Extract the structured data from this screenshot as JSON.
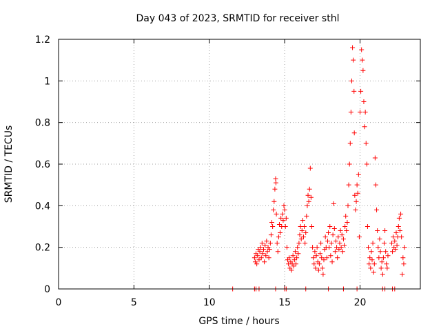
{
  "chart_data": {
    "type": "scatter",
    "title": "Day 043 of 2023, SRMTID for receiver sthl",
    "xlabel": "GPS time / hours",
    "ylabel": "SRMTID / TECUs",
    "xlim": [
      0,
      24
    ],
    "ylim": [
      0,
      1.2
    ],
    "xticks": [
      0,
      5,
      10,
      15,
      20
    ],
    "xtick_labels": [
      "0",
      "5",
      "10",
      "15",
      "20"
    ],
    "yticks": [
      0,
      0.2,
      0.4,
      0.6,
      0.8,
      1.0,
      1.2
    ],
    "ytick_labels": [
      "0",
      "0.2",
      "0.4",
      "0.6",
      "0.8",
      "1",
      "1.2"
    ],
    "grid": true,
    "marker": "+",
    "color": "#ff0000",
    "series": [
      {
        "name": "SRMTID",
        "points": [
          [
            11.55,
            0
          ],
          [
            13.0,
            0
          ],
          [
            13.1,
            0
          ],
          [
            13.3,
            0
          ],
          [
            14.4,
            0
          ],
          [
            15.0,
            0
          ],
          [
            15.1,
            0
          ],
          [
            16.4,
            0
          ],
          [
            17.9,
            0
          ],
          [
            18.9,
            0
          ],
          [
            19.8,
            0
          ],
          [
            21.5,
            0
          ],
          [
            21.65,
            0
          ],
          [
            22.15,
            0
          ],
          [
            22.3,
            0
          ],
          [
            13.0,
            0.15
          ],
          [
            13.05,
            0.13
          ],
          [
            13.1,
            0.17
          ],
          [
            13.15,
            0.12
          ],
          [
            13.2,
            0.16
          ],
          [
            13.25,
            0.19
          ],
          [
            13.3,
            0.14
          ],
          [
            13.35,
            0.18
          ],
          [
            13.4,
            0.2
          ],
          [
            13.45,
            0.15
          ],
          [
            13.5,
            0.22
          ],
          [
            13.55,
            0.17
          ],
          [
            13.6,
            0.19
          ],
          [
            13.65,
            0.13
          ],
          [
            13.7,
            0.21
          ],
          [
            13.75,
            0.16
          ],
          [
            13.8,
            0.23
          ],
          [
            13.85,
            0.18
          ],
          [
            13.9,
            0.2
          ],
          [
            13.95,
            0.15
          ],
          [
            14.0,
            0.19
          ],
          [
            14.05,
            0.22
          ],
          [
            14.1,
            0.26
          ],
          [
            14.15,
            0.32
          ],
          [
            14.2,
            0.3
          ],
          [
            14.25,
            0.38
          ],
          [
            14.3,
            0.42
          ],
          [
            14.35,
            0.48
          ],
          [
            14.4,
            0.53
          ],
          [
            14.42,
            0.51
          ],
          [
            14.45,
            0.36
          ],
          [
            14.5,
            0.22
          ],
          [
            14.55,
            0.18
          ],
          [
            14.6,
            0.25
          ],
          [
            14.65,
            0.31
          ],
          [
            14.7,
            0.27
          ],
          [
            14.75,
            0.34
          ],
          [
            14.8,
            0.3
          ],
          [
            14.85,
            0.36
          ],
          [
            14.9,
            0.33
          ],
          [
            14.95,
            0.4
          ],
          [
            15.0,
            0.38
          ],
          [
            15.05,
            0.3
          ],
          [
            15.1,
            0.34
          ],
          [
            15.15,
            0.2
          ],
          [
            15.2,
            0.14
          ],
          [
            15.25,
            0.12
          ],
          [
            15.3,
            0.15
          ],
          [
            15.35,
            0.1
          ],
          [
            15.4,
            0.13
          ],
          [
            15.45,
            0.09
          ],
          [
            15.5,
            0.12
          ],
          [
            15.55,
            0.16
          ],
          [
            15.6,
            0.11
          ],
          [
            15.65,
            0.14
          ],
          [
            15.7,
            0.18
          ],
          [
            15.75,
            0.12
          ],
          [
            15.8,
            0.15
          ],
          [
            15.85,
            0.2
          ],
          [
            15.9,
            0.17
          ],
          [
            15.95,
            0.22
          ],
          [
            16.0,
            0.26
          ],
          [
            16.05,
            0.3
          ],
          [
            16.1,
            0.24
          ],
          [
            16.15,
            0.28
          ],
          [
            16.2,
            0.33
          ],
          [
            16.25,
            0.25
          ],
          [
            16.3,
            0.3
          ],
          [
            16.35,
            0.22
          ],
          [
            16.4,
            0.27
          ],
          [
            16.45,
            0.35
          ],
          [
            16.5,
            0.4
          ],
          [
            16.55,
            0.45
          ],
          [
            16.6,
            0.42
          ],
          [
            16.65,
            0.48
          ],
          [
            16.7,
            0.58
          ],
          [
            16.75,
            0.44
          ],
          [
            16.8,
            0.3
          ],
          [
            16.85,
            0.2
          ],
          [
            16.9,
            0.15
          ],
          [
            16.95,
            0.12
          ],
          [
            17.0,
            0.18
          ],
          [
            17.05,
            0.1
          ],
          [
            17.1,
            0.16
          ],
          [
            17.15,
            0.2
          ],
          [
            17.2,
            0.13
          ],
          [
            17.25,
            0.09
          ],
          [
            17.3,
            0.12
          ],
          [
            17.35,
            0.17
          ],
          [
            17.4,
            0.22
          ],
          [
            17.45,
            0.15
          ],
          [
            17.5,
            0.1
          ],
          [
            17.55,
            0.07
          ],
          [
            17.6,
            0.14
          ],
          [
            17.65,
            0.19
          ],
          [
            17.7,
            0.25
          ],
          [
            17.75,
            0.2
          ],
          [
            17.8,
            0.15
          ],
          [
            17.85,
            0.23
          ],
          [
            17.9,
            0.27
          ],
          [
            17.95,
            0.2
          ],
          [
            18.0,
            0.3
          ],
          [
            18.05,
            0.16
          ],
          [
            18.1,
            0.22
          ],
          [
            18.15,
            0.13
          ],
          [
            18.2,
            0.26
          ],
          [
            18.25,
            0.41
          ],
          [
            18.3,
            0.29
          ],
          [
            18.35,
            0.18
          ],
          [
            18.4,
            0.23
          ],
          [
            18.45,
            0.2
          ],
          [
            18.5,
            0.15
          ],
          [
            18.55,
            0.25
          ],
          [
            18.6,
            0.19
          ],
          [
            18.65,
            0.22
          ],
          [
            18.7,
            0.28
          ],
          [
            18.75,
            0.2
          ],
          [
            18.8,
            0.26
          ],
          [
            18.85,
            0.18
          ],
          [
            18.9,
            0.24
          ],
          [
            18.95,
            0.21
          ],
          [
            19.0,
            0.3
          ],
          [
            19.05,
            0.35
          ],
          [
            19.1,
            0.28
          ],
          [
            19.15,
            0.32
          ],
          [
            19.2,
            0.4
          ],
          [
            19.25,
            0.5
          ],
          [
            19.3,
            0.6
          ],
          [
            19.35,
            0.7
          ],
          [
            19.4,
            0.85
          ],
          [
            19.45,
            1.0
          ],
          [
            19.5,
            1.16
          ],
          [
            19.55,
            1.1
          ],
          [
            19.6,
            0.95
          ],
          [
            19.62,
            0.75
          ],
          [
            19.65,
            0.45
          ],
          [
            19.7,
            0.38
          ],
          [
            19.75,
            0.42
          ],
          [
            19.8,
            0.5
          ],
          [
            19.85,
            0.46
          ],
          [
            19.9,
            0.55
          ],
          [
            19.95,
            0.25
          ],
          [
            20.0,
            0.85
          ],
          [
            20.05,
            0.95
          ],
          [
            20.1,
            1.15
          ],
          [
            20.15,
            1.1
          ],
          [
            20.2,
            1.05
          ],
          [
            20.25,
            0.9
          ],
          [
            20.3,
            0.78
          ],
          [
            20.35,
            0.85
          ],
          [
            20.4,
            0.7
          ],
          [
            20.45,
            0.6
          ],
          [
            20.5,
            0.3
          ],
          [
            20.55,
            0.2
          ],
          [
            20.6,
            0.12
          ],
          [
            20.65,
            0.15
          ],
          [
            20.7,
            0.1
          ],
          [
            20.75,
            0.18
          ],
          [
            20.8,
            0.14
          ],
          [
            20.85,
            0.22
          ],
          [
            20.9,
            0.08
          ],
          [
            20.95,
            0.12
          ],
          [
            21.0,
            0.63
          ],
          [
            21.05,
            0.5
          ],
          [
            21.1,
            0.38
          ],
          [
            21.15,
            0.28
          ],
          [
            21.2,
            0.2
          ],
          [
            21.25,
            0.15
          ],
          [
            21.3,
            0.24
          ],
          [
            21.35,
            0.18
          ],
          [
            21.4,
            0.1
          ],
          [
            21.45,
            0.13
          ],
          [
            21.5,
            0.07
          ],
          [
            21.55,
            0.15
          ],
          [
            21.6,
            0.22
          ],
          [
            21.65,
            0.28
          ],
          [
            21.7,
            0.18
          ],
          [
            21.75,
            0.12
          ],
          [
            21.8,
            0.1
          ],
          [
            21.85,
            0.16
          ],
          [
            22.1,
            0.22
          ],
          [
            22.15,
            0.18
          ],
          [
            22.2,
            0.25
          ],
          [
            22.25,
            0.2
          ],
          [
            22.3,
            0.23
          ],
          [
            22.35,
            0.19
          ],
          [
            22.4,
            0.27
          ],
          [
            22.45,
            0.21
          ],
          [
            22.5,
            0.25
          ],
          [
            22.55,
            0.3
          ],
          [
            22.6,
            0.34
          ],
          [
            22.65,
            0.28
          ],
          [
            22.7,
            0.36
          ],
          [
            22.75,
            0.25
          ],
          [
            22.8,
            0.07
          ],
          [
            22.85,
            0.15
          ],
          [
            22.9,
            0.12
          ],
          [
            22.95,
            0.2
          ]
        ]
      }
    ]
  }
}
